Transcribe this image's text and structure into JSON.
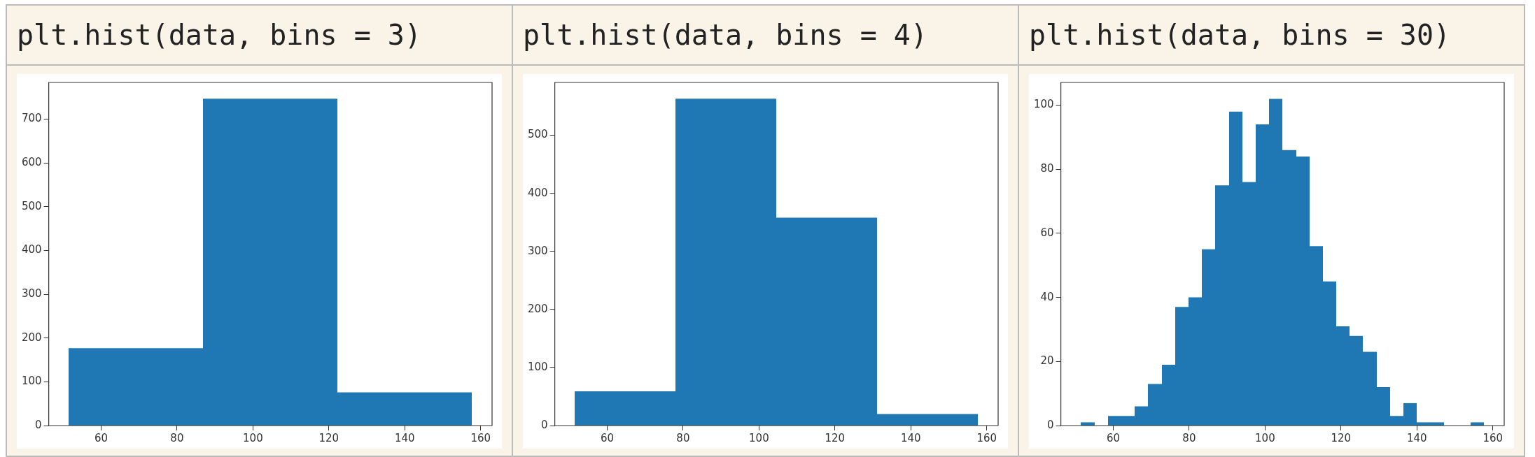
{
  "chart_data": [
    {
      "type": "histogram",
      "title": "plt.hist(data, bins = 3)",
      "bins": [
        51.5,
        86.9,
        122.3,
        157.7
      ],
      "values": [
        177,
        747,
        76
      ],
      "color": "#1f77b4",
      "xlim": [
        46.2,
        163
      ],
      "xticks": [
        60,
        80,
        100,
        120,
        140,
        160
      ],
      "ylim": [
        0,
        784
      ],
      "yticks": [
        0,
        100,
        200,
        300,
        400,
        500,
        600,
        700
      ],
      "grid": false
    },
    {
      "type": "histogram",
      "title": "plt.hist(data, bins = 4)",
      "bins": [
        51.5,
        78.05,
        104.6,
        131.15,
        157.7
      ],
      "values": [
        59,
        563,
        358,
        20
      ],
      "color": "#1f77b4",
      "xlim": [
        46.2,
        163
      ],
      "xticks": [
        60,
        80,
        100,
        120,
        140,
        160
      ],
      "ylim": [
        0,
        591
      ],
      "yticks": [
        0,
        100,
        200,
        300,
        400,
        500
      ],
      "grid": false
    },
    {
      "type": "histogram",
      "title": "plt.hist(data, bins = 30)",
      "bins": [
        51.5,
        55.04,
        58.58,
        62.12,
        65.66,
        69.2,
        72.74,
        76.28,
        79.82,
        83.36,
        86.9,
        90.44,
        93.98,
        97.52,
        101.06,
        104.6,
        108.14,
        111.68,
        115.22,
        118.76,
        122.3,
        125.84,
        129.38,
        132.92,
        136.46,
        140,
        143.54,
        147.08,
        150.62,
        154.16,
        157.7
      ],
      "values": [
        1,
        0,
        3,
        3,
        6,
        13,
        19,
        37,
        40,
        55,
        75,
        98,
        76,
        94,
        102,
        86,
        84,
        56,
        45,
        31,
        28,
        23,
        12,
        3,
        7,
        1,
        1,
        0,
        0,
        1
      ],
      "color": "#1f77b4",
      "xlim": [
        46.2,
        163
      ],
      "xticks": [
        60,
        80,
        100,
        120,
        140,
        160
      ],
      "ylim": [
        0,
        107.1
      ],
      "yticks": [
        0,
        20,
        40,
        60,
        80,
        100
      ],
      "grid": false
    }
  ]
}
